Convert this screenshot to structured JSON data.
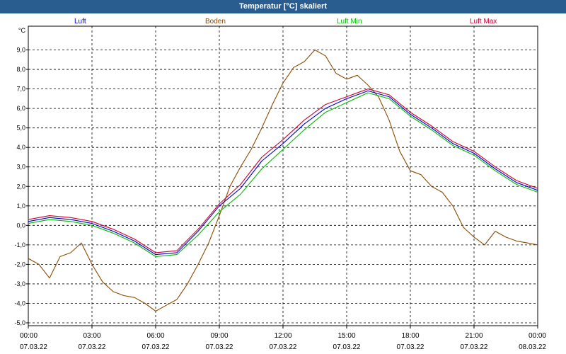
{
  "window": {
    "title": "Temperatur [°C] skaliert"
  },
  "chart_data": {
    "type": "line",
    "title": "Temperatur [°C] skaliert",
    "ylabel": "°C",
    "ylim": [
      -5.0,
      10.0
    ],
    "grid": true,
    "legend_position": "top",
    "y_ticks": [
      "9,0",
      "8,0",
      "7,0",
      "6,0",
      "5,0",
      "4,0",
      "3,0",
      "2,0",
      "1,0",
      "0,0",
      "-1,0",
      "-2,0",
      "-3,0",
      "-4,0",
      "-5,0"
    ],
    "x_ticks": [
      {
        "time": "00:00",
        "date": "07.03.22"
      },
      {
        "time": "03:00",
        "date": "07.03.22"
      },
      {
        "time": "06:00",
        "date": "07.03.22"
      },
      {
        "time": "09:00",
        "date": "07.03.22"
      },
      {
        "time": "12:00",
        "date": "07.03.22"
      },
      {
        "time": "15:00",
        "date": "07.03.22"
      },
      {
        "time": "18:00",
        "date": "07.03.22"
      },
      {
        "time": "21:00",
        "date": "07.03.22"
      },
      {
        "time": "00:00",
        "date": "08.03.22"
      }
    ],
    "series": [
      {
        "name": "Luft",
        "color": "#0000cc",
        "x": [
          "00:00",
          "01:00",
          "02:00",
          "03:00",
          "04:00",
          "05:00",
          "06:00",
          "07:00",
          "08:00",
          "09:00",
          "10:00",
          "11:00",
          "12:00",
          "13:00",
          "14:00",
          "15:00",
          "16:00",
          "17:00",
          "18:00",
          "19:00",
          "20:00",
          "21:00",
          "22:00",
          "23:00",
          "24:00"
        ],
        "y": [
          0.2,
          0.4,
          0.3,
          0.1,
          -0.3,
          -0.8,
          -1.5,
          -1.4,
          -0.3,
          1.0,
          1.9,
          3.3,
          4.2,
          5.2,
          6.0,
          6.5,
          6.9,
          6.6,
          5.7,
          5.0,
          4.2,
          3.7,
          2.9,
          2.2,
          1.8
        ]
      },
      {
        "name": "Boden",
        "color": "#8b4a00",
        "x": [
          "00:00",
          "00:30",
          "01:00",
          "01:30",
          "02:00",
          "02:30",
          "03:00",
          "03:30",
          "04:00",
          "04:30",
          "05:00",
          "05:30",
          "06:00",
          "06:30",
          "07:00",
          "07:30",
          "08:00",
          "08:30",
          "09:00",
          "09:30",
          "10:00",
          "10:30",
          "11:00",
          "11:30",
          "12:00",
          "12:30",
          "13:00",
          "13:30",
          "14:00",
          "14:30",
          "15:00",
          "15:30",
          "16:00",
          "16:30",
          "17:00",
          "17:30",
          "18:00",
          "18:30",
          "19:00",
          "19:30",
          "20:00",
          "20:30",
          "21:00",
          "21:30",
          "22:00",
          "22:30",
          "23:00",
          "23:30",
          "24:00"
        ],
        "y": [
          -1.7,
          -2.0,
          -2.7,
          -1.6,
          -1.4,
          -0.9,
          -2.0,
          -2.9,
          -3.4,
          -3.6,
          -3.7,
          -4.0,
          -4.4,
          -4.1,
          -3.8,
          -3.0,
          -2.0,
          -0.9,
          0.5,
          2.0,
          3.0,
          3.9,
          5.0,
          6.2,
          7.3,
          8.1,
          8.4,
          9.0,
          8.7,
          7.8,
          7.5,
          7.7,
          7.2,
          6.6,
          5.4,
          3.8,
          2.8,
          2.6,
          2.0,
          1.7,
          1.0,
          -0.1,
          -0.6,
          -1.0,
          -0.3,
          -0.6,
          -0.8,
          -0.9,
          -1.0
        ]
      },
      {
        "name": "Luft Min",
        "color": "#00bb00",
        "x": [
          "00:00",
          "01:00",
          "02:00",
          "03:00",
          "04:00",
          "05:00",
          "06:00",
          "07:00",
          "08:00",
          "09:00",
          "10:00",
          "11:00",
          "12:00",
          "13:00",
          "14:00",
          "15:00",
          "16:00",
          "17:00",
          "18:00",
          "19:00",
          "20:00",
          "21:00",
          "22:00",
          "23:00",
          "24:00"
        ],
        "y": [
          0.1,
          0.3,
          0.2,
          0.0,
          -0.4,
          -0.9,
          -1.6,
          -1.5,
          -0.5,
          0.7,
          1.6,
          2.9,
          3.9,
          4.9,
          5.8,
          6.3,
          6.8,
          6.5,
          5.6,
          4.9,
          4.1,
          3.6,
          2.8,
          2.1,
          1.7
        ]
      },
      {
        "name": "Luft Max",
        "color": "#cc0033",
        "x": [
          "00:00",
          "01:00",
          "02:00",
          "03:00",
          "04:00",
          "05:00",
          "06:00",
          "07:00",
          "08:00",
          "09:00",
          "10:00",
          "11:00",
          "12:00",
          "13:00",
          "14:00",
          "15:00",
          "16:00",
          "17:00",
          "18:00",
          "19:00",
          "20:00",
          "21:00",
          "22:00",
          "23:00",
          "24:00"
        ],
        "y": [
          0.3,
          0.5,
          0.4,
          0.2,
          -0.2,
          -0.7,
          -1.4,
          -1.3,
          -0.2,
          1.1,
          2.1,
          3.5,
          4.4,
          5.4,
          6.2,
          6.6,
          7.0,
          6.7,
          5.8,
          5.1,
          4.3,
          3.8,
          3.0,
          2.3,
          1.9
        ]
      }
    ]
  }
}
